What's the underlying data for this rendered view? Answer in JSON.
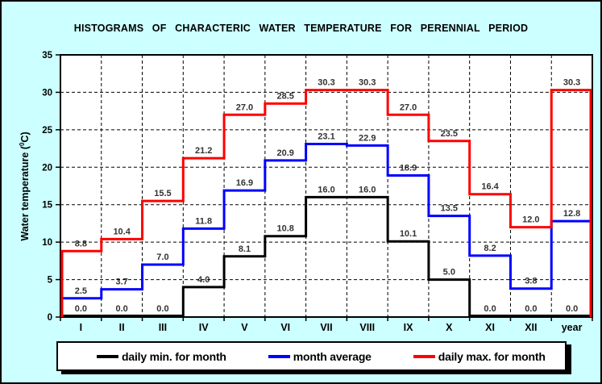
{
  "window": {
    "background_color": "#ccffff",
    "border_color": "#000000"
  },
  "title": "HISTOGRAMS OF CHARACTERIC WATER TEMPERATURE FOR PERENNIAL PERIOD",
  "y_axis": {
    "label_prefix": "Water temperature (",
    "label_sup": "0",
    "label_suffix": "C)"
  },
  "chart_data": {
    "type": "line",
    "subtype": "step-histogram",
    "title": "HISTOGRAMS OF CHARACTERIC WATER TEMPERATURE FOR PERENNIAL PERIOD",
    "xlabel": "",
    "ylabel": "Water temperature (0C)",
    "ylim": [
      0,
      35
    ],
    "ytick_step": 5,
    "yticks": [
      0,
      5,
      10,
      15,
      20,
      25,
      30,
      35
    ],
    "grid": "dashed",
    "legend_position": "bottom",
    "categories": [
      "I",
      "II",
      "III",
      "IV",
      "V",
      "VI",
      "VII",
      "VIII",
      "IX",
      "X",
      "XI",
      "XII",
      "year"
    ],
    "series": [
      {
        "name": "daily min. for month",
        "color": "#000000",
        "left_riser": false,
        "right_drop": false,
        "values": [
          0.0,
          0.0,
          0.0,
          4.0,
          8.1,
          10.8,
          16.0,
          16.0,
          10.1,
          5.0,
          0.0,
          0.0,
          0.0
        ]
      },
      {
        "name": "month average",
        "color": "#0000ff",
        "left_riser": true,
        "right_drop": false,
        "values": [
          2.5,
          3.7,
          7.0,
          11.8,
          16.9,
          20.9,
          23.1,
          22.9,
          18.9,
          13.5,
          8.2,
          3.8,
          12.8
        ]
      },
      {
        "name": "daily max. for month",
        "color": "#ff0000",
        "left_riser": true,
        "right_drop": true,
        "values": [
          8.8,
          10.4,
          15.5,
          21.2,
          27.0,
          28.5,
          30.3,
          30.3,
          27.0,
          23.5,
          16.4,
          12.0,
          30.3
        ]
      }
    ]
  }
}
